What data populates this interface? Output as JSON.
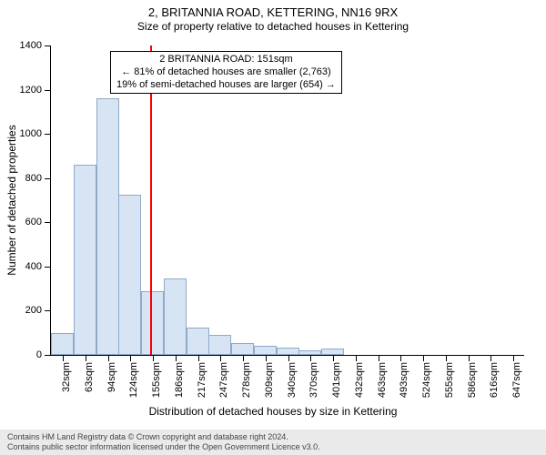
{
  "header": {
    "address": "2, BRITANNIA ROAD, KETTERING, NN16 9RX",
    "subtitle": "Size of property relative to detached houses in Kettering"
  },
  "chart": {
    "type": "histogram",
    "ylabel": "Number of detached properties",
    "xlabel": "Distribution of detached houses by size in Kettering",
    "ylim": [
      0,
      1400
    ],
    "ytick_step": 200,
    "background_color": "#ffffff",
    "bar_fill": "#d7e4f4",
    "bar_border": "#8fa9c9",
    "ref_line_color": "#ff0000",
    "ref_line_x": 151,
    "x_start": 16,
    "x_end": 662,
    "xticks": [
      32,
      63,
      94,
      124,
      155,
      186,
      217,
      247,
      278,
      309,
      340,
      370,
      401,
      432,
      463,
      493,
      524,
      555,
      586,
      616,
      647
    ],
    "bars": [
      {
        "x": 32,
        "v": 100
      },
      {
        "x": 63,
        "v": 860
      },
      {
        "x": 94,
        "v": 1160
      },
      {
        "x": 124,
        "v": 725
      },
      {
        "x": 155,
        "v": 290
      },
      {
        "x": 186,
        "v": 345
      },
      {
        "x": 217,
        "v": 125
      },
      {
        "x": 247,
        "v": 90
      },
      {
        "x": 278,
        "v": 55
      },
      {
        "x": 309,
        "v": 40
      },
      {
        "x": 340,
        "v": 35
      },
      {
        "x": 370,
        "v": 20
      },
      {
        "x": 401,
        "v": 28
      },
      {
        "x": 432,
        "v": 0
      },
      {
        "x": 463,
        "v": 0
      },
      {
        "x": 493,
        "v": 0
      },
      {
        "x": 524,
        "v": 0
      },
      {
        "x": 555,
        "v": 0
      },
      {
        "x": 586,
        "v": 0
      },
      {
        "x": 616,
        "v": 0
      },
      {
        "x": 647,
        "v": 0
      }
    ],
    "label_fontsize": 12,
    "tick_fontsize": 11,
    "x_unit_suffix": "sqm"
  },
  "annotation": {
    "line1": "2 BRITANNIA ROAD: 151sqm",
    "line2": "← 81% of detached houses are smaller (2,763)",
    "line3": "19% of semi-detached houses are larger (654) →"
  },
  "footer": {
    "line1": "Contains HM Land Registry data © Crown copyright and database right 2024.",
    "line2": "Contains public sector information licensed under the Open Government Licence v3.0."
  }
}
